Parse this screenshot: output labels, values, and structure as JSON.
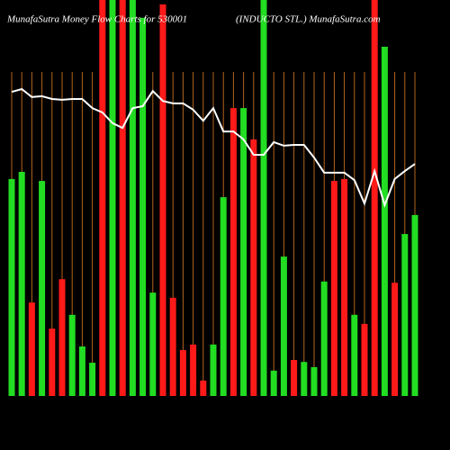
{
  "chart_data": {
    "type": "bar",
    "title": "MunafaSutra  Money Flow  Charts for 530001",
    "subtitle": "(INDUCTO STL.) MunafaSutra.com",
    "categories": [
      null,
      null,
      null,
      null,
      null,
      null,
      null,
      null,
      null,
      null,
      null,
      null,
      null,
      null,
      null,
      null,
      null,
      null,
      null,
      null,
      null,
      null,
      null,
      null,
      null,
      null,
      null,
      null,
      null,
      null,
      null,
      null,
      null,
      null,
      null,
      null,
      null,
      null,
      null,
      null,
      null
    ],
    "values": [
      54.8,
      56.6,
      23.6,
      54.3,
      17.0,
      29.5,
      20.5,
      12.5,
      8.4,
      100,
      100,
      100,
      100,
      95.5,
      26.1,
      98.9,
      24.8,
      11.6,
      13.0,
      3.9,
      13.0,
      50.2,
      72.7,
      72.7,
      64.8,
      100,
      6.4,
      35.2,
      9.1,
      8.6,
      7.3,
      28.9,
      54.3,
      54.8,
      20.5,
      18.2,
      100,
      88.2,
      28.6,
      40.9,
      45.7
    ],
    "bar_colors": [
      "#22dd22",
      "#22dd22",
      "#ff1a1a",
      "#22dd22",
      "#ff1a1a",
      "#ff1a1a",
      "#22dd22",
      "#22dd22",
      "#22dd22",
      "#ff1a1a",
      "#22dd22",
      "#ff1a1a",
      "#22dd22",
      "#22dd22",
      "#22dd22",
      "#ff1a1a",
      "#ff1a1a",
      "#ff1a1a",
      "#ff1a1a",
      "#ff1a1a",
      "#22dd22",
      "#22dd22",
      "#ff1a1a",
      "#22dd22",
      "#ff1a1a",
      "#22dd22",
      "#22dd22",
      "#22dd22",
      "#ff1a1a",
      "#22dd22",
      "#22dd22",
      "#22dd22",
      "#ff1a1a",
      "#ff1a1a",
      "#22dd22",
      "#ff1a1a",
      "#ff1a1a",
      "#22dd22",
      "#ff1a1a",
      "#22dd22",
      "#22dd22"
    ],
    "line_values": [
      76.8,
      77.5,
      75.5,
      75.7,
      75,
      74.8,
      75,
      75,
      72.7,
      71.6,
      68.9,
      67.7,
      72.7,
      73.2,
      77,
      74.5,
      73.9,
      73.9,
      72.3,
      69.5,
      72.7,
      66.8,
      66.8,
      64.8,
      60.9,
      60.9,
      64.1,
      63.2,
      63.4,
      63.4,
      60.2,
      56.4,
      56.4,
      56.4,
      54.5,
      48.6,
      56.8,
      48.2,
      54.8,
      56.8,
      58.6
    ],
    "line_color": "#ffffff",
    "ylim": [
      0,
      100
    ],
    "grid_color": "#b5651d"
  }
}
